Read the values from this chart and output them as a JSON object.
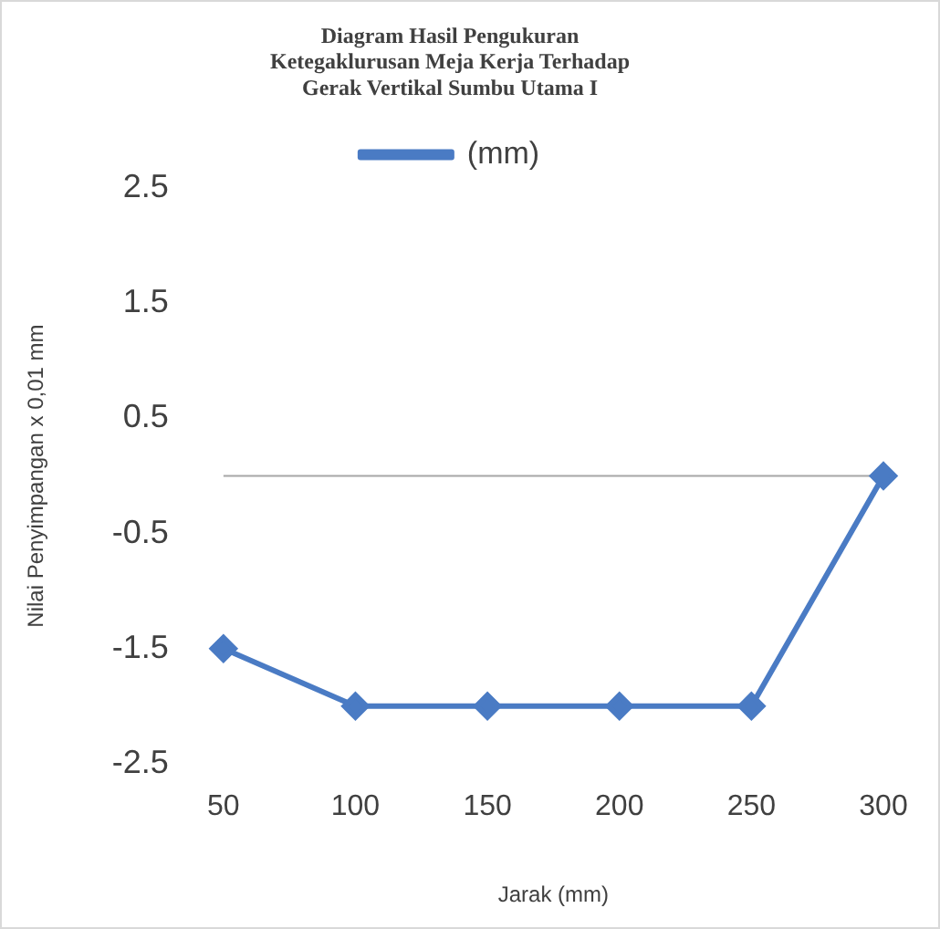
{
  "chart_data": {
    "type": "line",
    "title": "Diagram Hasil Pengukuran\nKetegaklurusan Meja Kerja Terhadap\nGerak Vertikal Sumbu Utama I",
    "xlabel": "Jarak (mm)",
    "ylabel": "Nilai Penyimpangan x 0,01 mm",
    "categories": [
      "50",
      "100",
      "150",
      "200",
      "250",
      "300"
    ],
    "series": [
      {
        "name": "(mm)",
        "color": "#4a7bc4",
        "values": [
          -1.5,
          -2,
          -2,
          -2,
          -2,
          0
        ]
      }
    ],
    "ylim": [
      -2.5,
      2.5
    ],
    "yticks": [
      -2.5,
      -1.5,
      -0.5,
      0.5,
      1.5,
      2.5
    ],
    "grid": false,
    "legend": "top",
    "marker": "diamond",
    "line_style": "solid",
    "ref_lines": [
      {
        "axis": "y",
        "value": 0,
        "color": "#a6a6a6"
      }
    ]
  }
}
